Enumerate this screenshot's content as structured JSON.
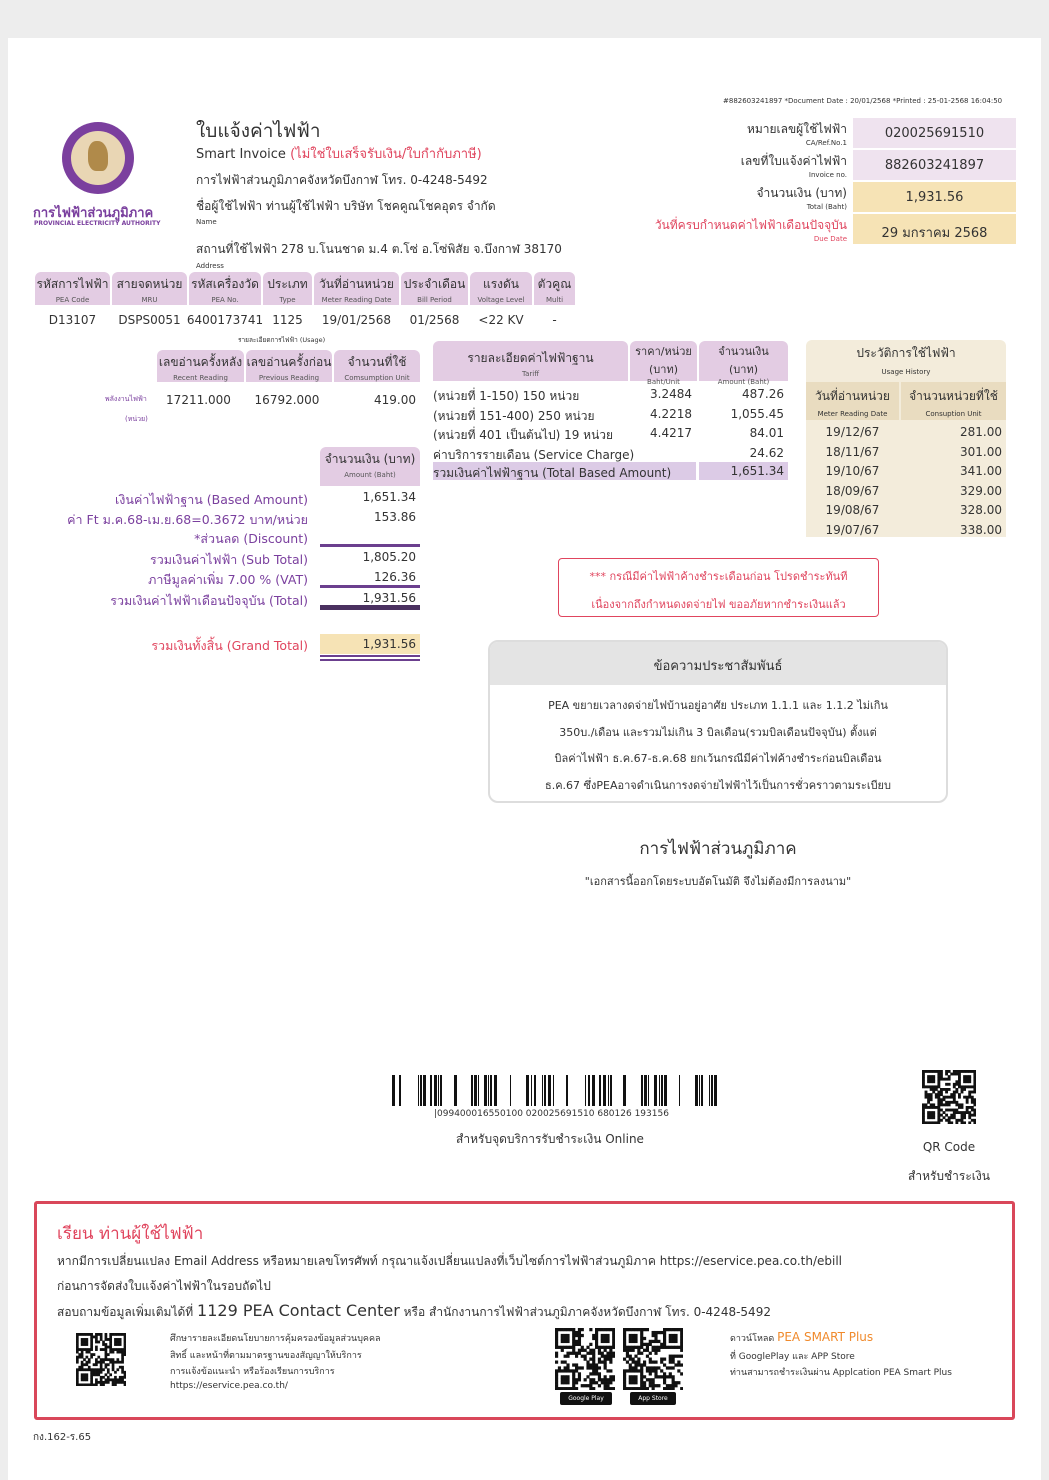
{
  "meta": {
    "doc_line": "#882603241897 *Document Date : 20/01/2568 *Printed : 25-01-2568 16:04:50"
  },
  "logo": {
    "name_th": "การไฟฟ้าส่วนภูมิภาค",
    "name_en": "PROVINCIAL ELECTRICITY AUTHORITY"
  },
  "header": {
    "title": "ใบแจ้งค่าไฟฟ้า",
    "subtitle": "Smart Invoice",
    "subtitle_note": "(ไม่ใช่ใบเสร็จรับเงิน/ใบกำกับภาษี)",
    "office": "การไฟฟ้าส่วนภูมิภาคจังหวัดบึงกาฬ โทร. 0-4248-5492",
    "customer": "ชื่อผู้ใช้ไฟฟ้า ท่านผู้ใช้ไฟฟ้า บริษัท โชคคูณโชคอุดร จำกัด",
    "customer_en": "Name",
    "address": "สถานที่ใช้ไฟฟ้า 278 บ.โนนชาด ม.4 ต.โซ่ อ.โซ่พิสัย จ.บึงกาฬ 38170",
    "address_en": "Address"
  },
  "summary": [
    {
      "label": "หมายเลขผู้ใช้ไฟฟ้า",
      "sub": "CA/Ref.No.1",
      "value": "020025691510",
      "color": "#efe3ef"
    },
    {
      "label": "เลขที่ใบแจ้งค่าไฟฟ้า",
      "sub": "Invoice no.",
      "value": "882603241897",
      "color": "#efe3ef"
    },
    {
      "label": "จำนวนเงิน (บาท)",
      "sub": "Total (Baht)",
      "value": "1,931.56",
      "color": "#f6e3b5"
    },
    {
      "label": "วันที่ครบกำหนดค่าไฟฟ้าเดือนปัจจุบัน",
      "sub": "Due Date",
      "value": "29 มกราคม 2568",
      "color": "#f6e3b5"
    }
  ],
  "info_table": {
    "columns": [
      {
        "th": "รหัสการไฟฟ้า",
        "en": "PEA Code",
        "value": "D13107"
      },
      {
        "th": "สายจดหน่วย",
        "en": "MRU",
        "value": "DSPS0051"
      },
      {
        "th": "รหัสเครื่องวัด",
        "en": "PEA No.",
        "value": "6400173741"
      },
      {
        "th": "ประเภท",
        "en": "Type",
        "value": "1125"
      },
      {
        "th": "วันที่อ่านหน่วย",
        "en": "Meter Reading Date",
        "value": "19/01/2568"
      },
      {
        "th": "ประจำเดือน",
        "en": "Bill Period",
        "value": "01/2568"
      },
      {
        "th": "แรงดัน",
        "en": "Voltage Level",
        "value": "<22 KV"
      },
      {
        "th": "ตัวคูณ",
        "en": "Multi",
        "value": "-"
      }
    ]
  },
  "usage": {
    "caption": "รายละเอียดการไฟฟ้า (Usage)",
    "row_label_1": "พลังงานไฟฟ้า",
    "row_label_2": "(หน่วย)",
    "columns": [
      {
        "th": "เลขอ่านครั้งหลัง",
        "en": "Recent Reading",
        "value": "17211.000"
      },
      {
        "th": "เลขอ่านครั้งก่อน",
        "en": "Previous Reading",
        "value": "16792.000"
      },
      {
        "th": "จำนวนที่ใช้",
        "en": "Comsumption Unit",
        "value": "419.00"
      }
    ]
  },
  "amounts": {
    "header_th": "จำนวนเงิน (บาท)",
    "header_en": "Amount (Baht)",
    "rows": [
      {
        "label": "เงินค่าไฟฟ้าฐาน (Based Amount)",
        "value": "1,651.34"
      },
      {
        "label_prefix": "ค่า Ft ม.ค.68-เม.ย.68=0.3672",
        "label": "บาท/หน่วย",
        "value": "153.86"
      },
      {
        "label": "*ส่วนลด (Discount)",
        "value": ""
      },
      {
        "label": "รวมเงินค่าไฟฟ้า (Sub Total)",
        "value": "1,805.20"
      },
      {
        "label": "ภาษีมูลค่าเพิ่ม 7.00 % (VAT)",
        "value": "126.36"
      },
      {
        "label": "รวมเงินค่าไฟฟ้าเดือนปัจจุบัน (Total)",
        "value": "1,931.56"
      }
    ],
    "grand_label": "รวมเงินทั้งสิ้น (Grand Total)",
    "grand_value": "1,931.56"
  },
  "tariff": {
    "h1": "รายละเอียดค่าไฟฟ้าฐาน",
    "h1_en": "Tariff",
    "h2": "ราคา/หน่วย",
    "h2b": "(บาท)",
    "h2_en": "Baht/Unit",
    "h3": "จำนวนเงิน",
    "h3b": "(บาท)",
    "h3_en": "Amount (Baht)",
    "rows": [
      {
        "desc": "(หน่วยที่ 1-150) 150 หน่วย",
        "rate": "3.2484",
        "amount": "487.26"
      },
      {
        "desc": "(หน่วยที่ 151-400) 250 หน่วย",
        "rate": "4.2218",
        "amount": "1,055.45"
      },
      {
        "desc": "(หน่วยที่ 401 เป็นต้นไป) 19 หน่วย",
        "rate": "4.4217",
        "amount": "84.01"
      },
      {
        "desc": "ค่าบริการรายเดือน (Service Charge)",
        "rate": "",
        "amount": "24.62"
      }
    ],
    "total_label": "รวมเงินค่าไฟฟ้าฐาน (Total Based Amount)",
    "total_value": "1,651.34"
  },
  "history": {
    "title": "ประวัติการใช้ไฟฟ้า",
    "title_en": "Usage History",
    "c1": "วันที่อ่านหน่วย",
    "c1_en": "Meter Reading Date",
    "c2": "จำนวนหน่วยที่ใช้",
    "c2_en": "Consuption Unit",
    "rows": [
      {
        "date": "19/12/67",
        "units": "281.00"
      },
      {
        "date": "18/11/67",
        "units": "301.00"
      },
      {
        "date": "19/10/67",
        "units": "341.00"
      },
      {
        "date": "18/09/67",
        "units": "329.00"
      },
      {
        "date": "19/08/67",
        "units": "328.00"
      },
      {
        "date": "19/07/67",
        "units": "338.00"
      }
    ]
  },
  "warning": {
    "line1": "*** กรณีมีค่าไฟฟ้าค้างชำระเดือนก่อน โปรดชำระทันที",
    "line2": "เนื่องจากถึงกำหนดงดจ่ายไฟ ขออภัยหากชำระเงินแล้ว"
  },
  "pr": {
    "title": "ข้อความประชาสัมพันธ์",
    "lines": [
      "PEA ขยายเวลางดจ่ายไฟบ้านอยู่อาศัย ประเภท 1.1.1 และ 1.1.2 ไม่เกิน",
      "350บ./เดือน และรวมไม่เกิน 3 บิลเดือน(รวมบิลเดือนปัจจุบัน) ตั้งแต่",
      "บิลค่าไฟฟ้า ธ.ค.67-ธ.ค.68 ยกเว้นกรณีมีค่าไฟค้างชำระก่อนบิลเดือน",
      "ธ.ค.67 ซึ่งPEAอาจดำเนินการงดจ่ายไฟฟ้าไว้เป็นการชั่วคราวตามระเบียบ"
    ]
  },
  "signature": {
    "org": "การไฟฟ้าส่วนภูมิภาค",
    "note": "\"เอกสารนี้ออกโดยระบบอัตโนมัติ จึงไม่ต้องมีการลงนาม\""
  },
  "payment": {
    "barcode_text": "|099400016550100 020025691510 680126 193156",
    "barcode_caption": "สำหรับจุดบริการรับชำระเงิน Online",
    "qr_label": "QR Code",
    "qr_caption": "สำหรับชำระเงิน"
  },
  "notice": {
    "heading": "เรียน ท่านผู้ใช้ไฟฟ้า",
    "line1": "หากมีการเปลี่ยนแปลง Email Address หรือหมายเลขโทรศัพท์ กรุณาแจ้งเปลี่ยนแปลงที่เว็บไซต์การไฟฟ้าส่วนภูมิภาค https://eservice.pea.co.th/ebill",
    "line2": "ก่อนการจัดส่งใบแจ้งค่าไฟฟ้าในรอบถัดไป",
    "line3_a": "สอบถามข้อมูลเพิ่มเติมได้ที่",
    "line3_b": "1129 PEA Contact Center",
    "line3_c": "หรือ สำนักงานการไฟฟ้าส่วนภูมิภาคจังหวัดบึงกาฬ โทร. 0-4248-5492",
    "privacy": [
      "ศึกษารายละเอียดนโยบายการคุ้มครองข้อมูลส่วนบุคคล",
      "สิทธิ์ และหน้าที่ตามมาตรฐานของสัญญาให้บริการ",
      "การแจ้งข้อแนะนำ หรือร้องเรียนการบริการ",
      "https://eservice.pea.co.th/"
    ],
    "app_a": "ดาวน์โหลด",
    "app_b": "PEA SMART Plus",
    "app_line2": "ที่ GooglePlay และ APP Store",
    "app_line3": "ท่านสามารถชำระเงินผ่าน Applcation PEA Smart Plus",
    "google_play": "Google Play",
    "app_store": "App Store"
  },
  "footer_code": "กง.162-ร.65",
  "colors": {
    "purple": "#7a3f9e",
    "red": "#e0455e",
    "header_purple": "#e3cce3",
    "tan": "#f6e3b5",
    "beige": "#efe6cf"
  }
}
